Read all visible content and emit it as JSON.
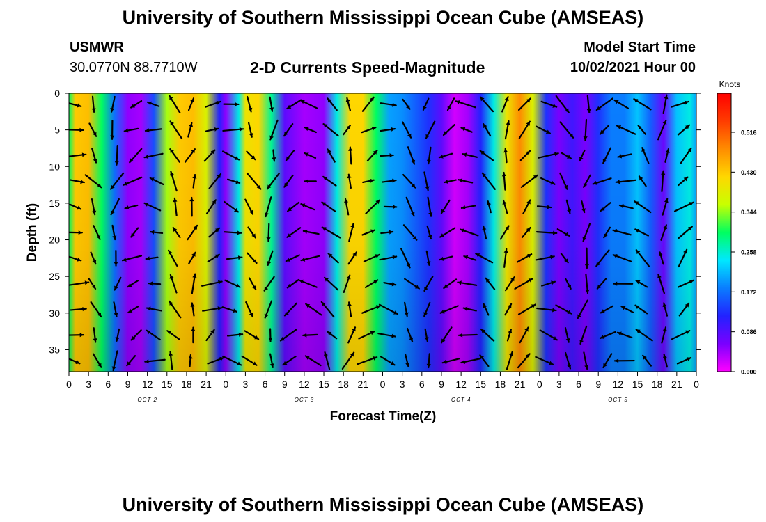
{
  "header": {
    "top_title": "University of Southern Mississippi Ocean Cube (AMSEAS)",
    "bottom_title": "University of Southern Mississippi Ocean Cube (AMSEAS)",
    "station_name": "USMWR",
    "station_coords": "30.0770N  88.7710W",
    "plot_title": "2-D Currents Speed-Magnitude",
    "model_start_label": "Model Start Time",
    "model_start_value": "10/02/2021 Hour 00"
  },
  "chart_data": {
    "type": "heatmap",
    "title": "2-D Currents Speed-Magnitude",
    "xlabel": "Forecast Time(Z)",
    "ylabel": "Depth (ft)",
    "x_tick_labels": [
      "0",
      "3",
      "6",
      "9",
      "12",
      "15",
      "18",
      "21",
      "0",
      "3",
      "6",
      "9",
      "12",
      "15",
      "18",
      "21",
      "0",
      "3",
      "6",
      "9",
      "12",
      "15",
      "18",
      "21",
      "0",
      "3",
      "6",
      "9",
      "12",
      "15",
      "18",
      "21",
      "0"
    ],
    "x_range_hours": [
      0,
      96
    ],
    "day_labels": [
      {
        "label": "OCT 2",
        "hour": 12
      },
      {
        "label": "OCT 3",
        "hour": 36
      },
      {
        "label": "OCT 4",
        "hour": 60
      },
      {
        "label": "OCT 5",
        "hour": 84
      }
    ],
    "y_ticks": [
      0,
      5,
      10,
      15,
      20,
      25,
      30,
      35
    ],
    "y_tick_labels": [
      "0",
      "5",
      "10",
      "15",
      "20",
      "25",
      "30",
      "35"
    ],
    "ylim": [
      0,
      38
    ],
    "colorbar": {
      "unit_label": "Knots",
      "tick_labels": [
        "0.516",
        "0.430",
        "0.344",
        "0.258",
        "0.172",
        "0.086",
        "0.000"
      ],
      "tick_values": [
        0.516,
        0.43,
        0.344,
        0.258,
        0.172,
        0.086,
        0.0
      ],
      "range": [
        0,
        0.6
      ],
      "colors": [
        "#ff00ff",
        "#7a00ff",
        "#2222ff",
        "#0a7dff",
        "#00e8ff",
        "#00ff60",
        "#c8ff00",
        "#ffd700",
        "#ff8c00",
        "#ff3c00",
        "#ff0000"
      ]
    },
    "speed_profile_by_hour": [
      {
        "hour": 0,
        "knots": 0.3
      },
      {
        "hour": 1,
        "knots": 0.43
      },
      {
        "hour": 3,
        "knots": 0.44
      },
      {
        "hour": 5,
        "knots": 0.3
      },
      {
        "hour": 7,
        "knots": 0.17
      },
      {
        "hour": 9,
        "knots": 0.05
      },
      {
        "hour": 11,
        "knots": 0.04
      },
      {
        "hour": 13,
        "knots": 0.15
      },
      {
        "hour": 15,
        "knots": 0.35
      },
      {
        "hour": 17,
        "knots": 0.43
      },
      {
        "hour": 19,
        "knots": 0.44
      },
      {
        "hour": 21,
        "knots": 0.38
      },
      {
        "hour": 23,
        "knots": 0.12
      },
      {
        "hour": 24,
        "knots": 0.05
      },
      {
        "hour": 26,
        "knots": 0.25
      },
      {
        "hour": 27,
        "knots": 0.4
      },
      {
        "hour": 29,
        "knots": 0.42
      },
      {
        "hour": 31,
        "knots": 0.28
      },
      {
        "hour": 33,
        "knots": 0.08
      },
      {
        "hour": 36,
        "knots": 0.04
      },
      {
        "hour": 39,
        "knots": 0.05
      },
      {
        "hour": 41,
        "knots": 0.25
      },
      {
        "hour": 43,
        "knots": 0.42
      },
      {
        "hour": 45,
        "knots": 0.42
      },
      {
        "hour": 47,
        "knots": 0.3
      },
      {
        "hour": 49,
        "knots": 0.2
      },
      {
        "hour": 51,
        "knots": 0.19
      },
      {
        "hour": 53,
        "knots": 0.16
      },
      {
        "hour": 55,
        "knots": 0.13
      },
      {
        "hour": 57,
        "knots": 0.08
      },
      {
        "hour": 59,
        "knots": 0.02
      },
      {
        "hour": 61,
        "knots": 0.04
      },
      {
        "hour": 63,
        "knots": 0.12
      },
      {
        "hour": 65,
        "knots": 0.25
      },
      {
        "hour": 67,
        "knots": 0.4
      },
      {
        "hour": 69,
        "knots": 0.48
      },
      {
        "hour": 71,
        "knots": 0.38
      },
      {
        "hour": 73,
        "knots": 0.13
      },
      {
        "hour": 75,
        "knots": 0.06
      },
      {
        "hour": 77,
        "knots": 0.1
      },
      {
        "hour": 79,
        "knots": 0.06
      },
      {
        "hour": 81,
        "knots": 0.13
      },
      {
        "hour": 83,
        "knots": 0.18
      },
      {
        "hour": 85,
        "knots": 0.18
      },
      {
        "hour": 87,
        "knots": 0.22
      },
      {
        "hour": 89,
        "knots": 0.16
      },
      {
        "hour": 91,
        "knots": 0.07
      },
      {
        "hour": 93,
        "knots": 0.22
      },
      {
        "hour": 95,
        "knots": 0.25
      },
      {
        "hour": 96,
        "knots": 0.2
      }
    ]
  }
}
